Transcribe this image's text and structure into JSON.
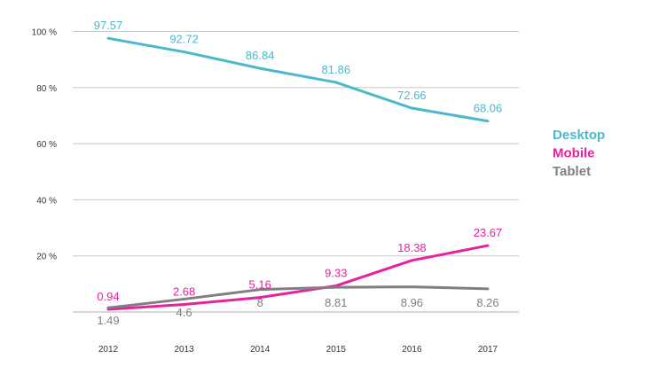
{
  "chart_data": {
    "type": "line",
    "title": "",
    "xlabel": "",
    "ylabel": "",
    "categories": [
      "2012",
      "2013",
      "2014",
      "2015",
      "2016",
      "2017"
    ],
    "ylim": [
      0,
      100
    ],
    "y_ticks": [
      20,
      40,
      60,
      80,
      100
    ],
    "y_tick_labels": [
      "20 %",
      "40 %",
      "60 %",
      "80 %",
      "100 %"
    ],
    "grid": true,
    "legend_position": "right",
    "series": [
      {
        "name": "Desktop",
        "color": "#4bb8cc",
        "values": [
          97.57,
          92.72,
          86.84,
          81.86,
          72.66,
          68.06
        ],
        "labels": [
          "97.57",
          "92.72",
          "86.84",
          "81.86",
          "72.66",
          "68.06"
        ]
      },
      {
        "name": "Mobile",
        "color": "#e5239f",
        "values": [
          0.94,
          2.68,
          5.16,
          9.33,
          18.38,
          23.67
        ],
        "labels": [
          "0.94",
          "2.68",
          "5.16",
          "9.33",
          "18.38",
          "23.67"
        ]
      },
      {
        "name": "Tablet",
        "color": "#808080",
        "values": [
          1.49,
          4.6,
          8,
          8.81,
          8.96,
          8.26
        ],
        "labels": [
          "1.49",
          "4.6",
          "8",
          "8.81",
          "8.96",
          "8.26"
        ]
      }
    ]
  }
}
